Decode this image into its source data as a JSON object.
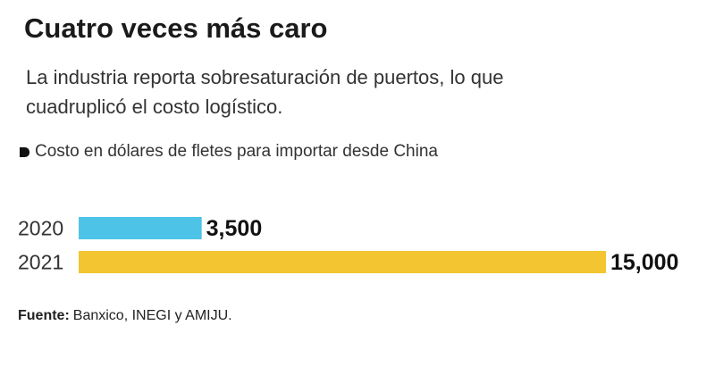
{
  "chart_data": {
    "type": "bar",
    "orientation": "horizontal",
    "title": "Cuatro veces más caro",
    "subtitle": "La industria reporta sobresaturación de puertos, lo que cuadruplicó el costo logístico.",
    "note": "Costo en dólares de fletes para importar desde China",
    "categories": [
      "2020",
      "2021"
    ],
    "values": [
      3500,
      15000
    ],
    "value_labels": [
      "3,500",
      "15,000"
    ],
    "colors": [
      "#4dc3e8",
      "#f2c531"
    ],
    "source_label": "Fuente:",
    "source": "Banxico, INEGI y AMIJU."
  }
}
